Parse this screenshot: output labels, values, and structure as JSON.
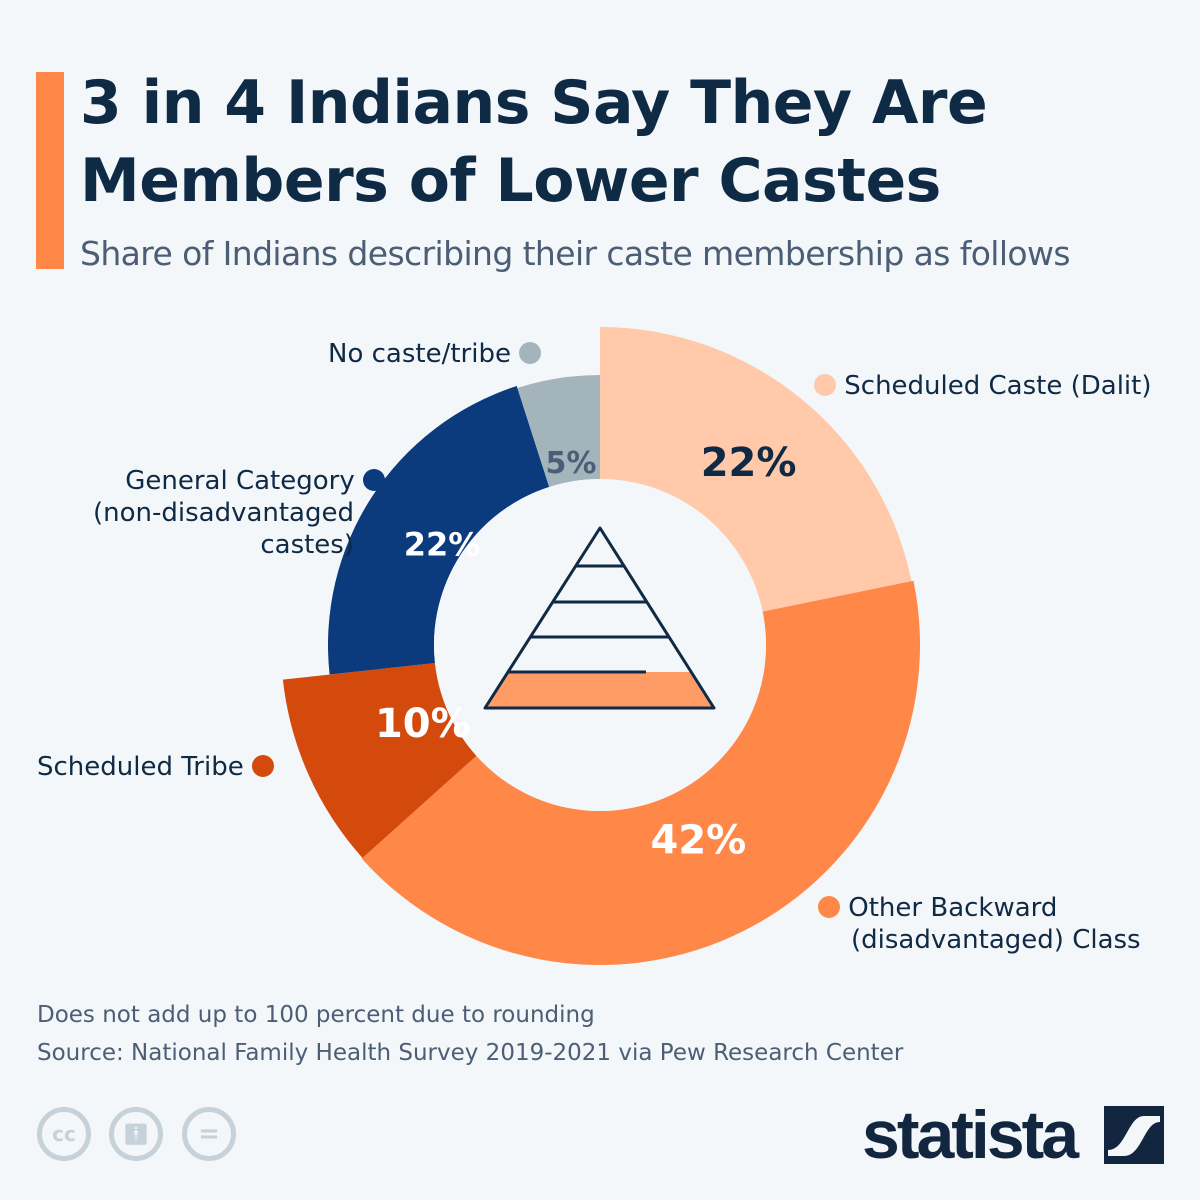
{
  "header": {
    "title_line1": "3 in 4 Indians Say They Are",
    "title_line2": "Members of Lower Castes",
    "subtitle": "Share of Indians describing their caste membership as follows"
  },
  "chart_data": {
    "type": "pie",
    "variant": "donut",
    "slices": [
      {
        "name": "Scheduled Caste (Dalit)",
        "value": 22,
        "label": "22%",
        "color": "#ffc9aa"
      },
      {
        "name": "Other Backward (disadvantaged) Class",
        "value": 42,
        "label": "42%",
        "color": "#ff8848"
      },
      {
        "name": "Scheduled Tribe",
        "value": 10,
        "label": "10%",
        "color": "#d4490c"
      },
      {
        "name": "General Category (non-disadvantaged castes)",
        "value": 22,
        "label": "22%",
        "color": "#0b3a7d"
      },
      {
        "name": "No caste/tribe",
        "value": 5,
        "label": "5%",
        "color": "#a3b4bb"
      }
    ],
    "center_icon": "pyramid-icon"
  },
  "legend": {
    "sc": "Scheduled Caste (Dalit)",
    "obc1": "Other Backward",
    "obc2": "(disadvantaged) Class",
    "st": "Scheduled Tribe",
    "gen1": "General Category",
    "gen2": "(non-disadvantaged",
    "gen3": "castes)",
    "nc": "No caste/tribe"
  },
  "footer": {
    "note": "Does not add up to 100 percent due to rounding",
    "source": "Source: National Family Health Survey 2019-2021 via Pew Research Center",
    "cc": "cc",
    "brand": "statista"
  }
}
